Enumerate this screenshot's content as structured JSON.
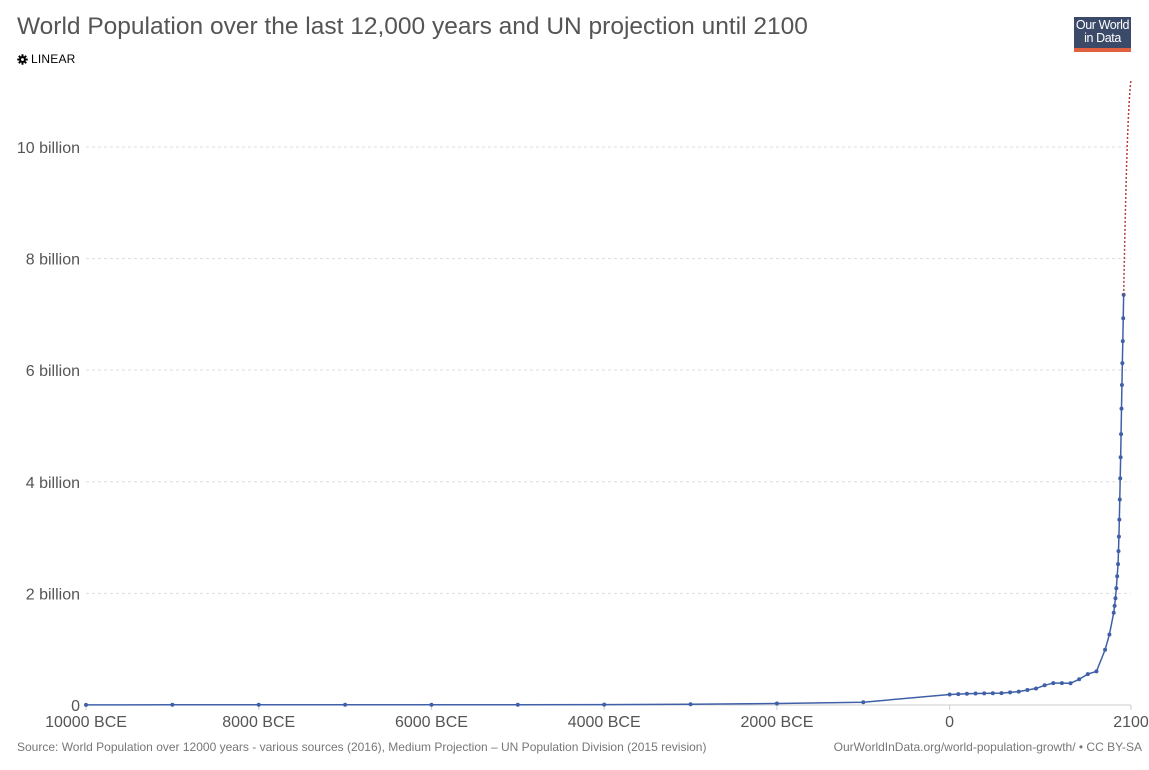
{
  "title": "World Population over the last 12,000 years and UN projection until 2100",
  "scale_toggle": {
    "label": "LINEAR",
    "icon": "gear-icon"
  },
  "logo": {
    "line1": "Our World",
    "line2": "in Data",
    "bg_color": "#3b4a69",
    "bar_color": "#e0603f"
  },
  "source": "Source: World Population over 12000 years - various sources (2016), Medium Projection – UN Population Division (2015 revision)",
  "license": "OurWorldInData.org/world-population-growth/ • CC BY-SA",
  "chart_data": {
    "type": "line",
    "title": "World Population over the last 12,000 years and UN projection until 2100",
    "xlabel": "",
    "ylabel": "",
    "xlim": [
      -10000,
      2100
    ],
    "ylim": [
      0,
      11200000000
    ],
    "grid": true,
    "x_ticks": [
      {
        "value": -10000,
        "label": "10000 BCE"
      },
      {
        "value": -8000,
        "label": "8000 BCE"
      },
      {
        "value": -6000,
        "label": "6000 BCE"
      },
      {
        "value": -4000,
        "label": "4000 BCE"
      },
      {
        "value": -2000,
        "label": "2000 BCE"
      },
      {
        "value": 0,
        "label": "0"
      },
      {
        "value": 2100,
        "label": "2100"
      }
    ],
    "y_ticks": [
      {
        "value": 0,
        "label": "0"
      },
      {
        "value": 2000000000,
        "label": "2 billion"
      },
      {
        "value": 4000000000,
        "label": "4 billion"
      },
      {
        "value": 6000000000,
        "label": "6 billion"
      },
      {
        "value": 8000000000,
        "label": "8 billion"
      },
      {
        "value": 10000000000,
        "label": "10 billion"
      }
    ],
    "series": [
      {
        "color": "#3f60a8",
        "style": "solid",
        "markers": true,
        "points": [
          [
            -10000,
            2000000
          ],
          [
            -9000,
            4000000
          ],
          [
            -8000,
            5000000
          ],
          [
            -7000,
            5000000
          ],
          [
            -6000,
            5000000
          ],
          [
            -5000,
            5000000
          ],
          [
            -4000,
            7000000
          ],
          [
            -3000,
            14000000
          ],
          [
            -2000,
            27000000
          ],
          [
            -1000,
            50000000
          ],
          [
            0,
            188000000
          ],
          [
            100,
            195000000
          ],
          [
            200,
            202000000
          ],
          [
            300,
            205000000
          ],
          [
            400,
            209000000
          ],
          [
            500,
            210000000
          ],
          [
            600,
            213000000
          ],
          [
            700,
            226000000
          ],
          [
            800,
            240000000
          ],
          [
            900,
            269000000
          ],
          [
            1000,
            295000000
          ],
          [
            1100,
            353000000
          ],
          [
            1200,
            393000000
          ],
          [
            1300,
            392000000
          ],
          [
            1400,
            390000000
          ],
          [
            1500,
            461000000
          ],
          [
            1600,
            554000000
          ],
          [
            1700,
            603000000
          ],
          [
            1800,
            990000000
          ],
          [
            1850,
            1263000000
          ],
          [
            1900,
            1654000000
          ],
          [
            1910,
            1777000000
          ],
          [
            1920,
            1912000000
          ],
          [
            1930,
            2092000000
          ],
          [
            1940,
            2307000000
          ],
          [
            1950,
            2525000000
          ],
          [
            1955,
            2758000000
          ],
          [
            1960,
            3018000000
          ],
          [
            1965,
            3322000000
          ],
          [
            1970,
            3682000000
          ],
          [
            1975,
            4061000000
          ],
          [
            1980,
            4440000000
          ],
          [
            1985,
            4853000000
          ],
          [
            1990,
            5310000000
          ],
          [
            1995,
            5735000000
          ],
          [
            2000,
            6127000000
          ],
          [
            2005,
            6520000000
          ],
          [
            2010,
            6930000000
          ],
          [
            2015,
            7349000000
          ]
        ]
      },
      {
        "color": "#b13c3c",
        "style": "dotted",
        "markers": false,
        "points": [
          [
            2015,
            7349000000
          ],
          [
            2020,
            7758000000
          ],
          [
            2030,
            8501000000
          ],
          [
            2040,
            9157000000
          ],
          [
            2050,
            9725000000
          ],
          [
            2060,
            10184000000
          ],
          [
            2070,
            10548000000
          ],
          [
            2080,
            10837000000
          ],
          [
            2090,
            11054000000
          ],
          [
            2100,
            11213000000
          ]
        ]
      }
    ]
  }
}
